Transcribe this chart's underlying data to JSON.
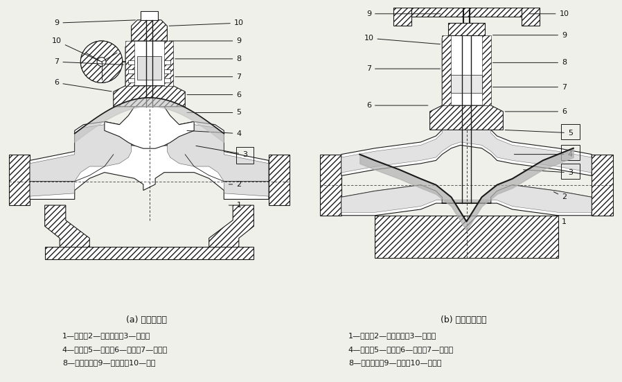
{
  "bg_color": "#f0f0eb",
  "fig_width": 8.98,
  "fig_height": 5.51,
  "left_caption": "(a) 堰式隔膜阀",
  "right_caption": "(b) 直通式隔膜阀",
  "left_legend_line1": "1—阀体；2—阀体衬里；3—隔膜；",
  "left_legend_line2": "4—螺钉；5—阀盖；6—阀瓣；7—阀体；",
  "left_legend_line3": "8—阀杆螺母；9—指示器；10—手轮",
  "right_legend_line1": "1—阀体；2—阀体衬里；3—隔膜；",
  "right_legend_line2": "4—螺钉；5—阀盖；6—阀瓣；7—阀杆；",
  "right_legend_line3": "8—阀杆螺母；9—手轮；10—指示器",
  "line_color": "#1a1a1a",
  "text_color": "#111111",
  "caption_fontsize": 9,
  "legend_fontsize": 8,
  "label_fontsize": 8
}
